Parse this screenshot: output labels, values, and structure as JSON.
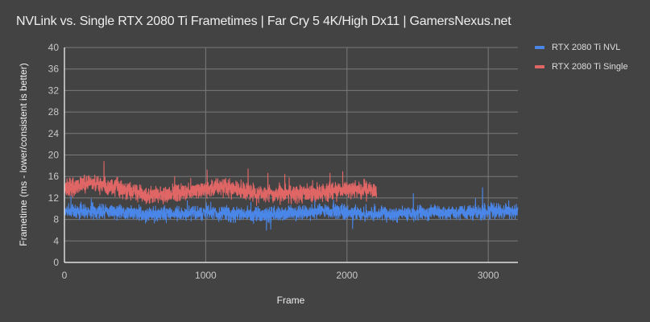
{
  "title": "NVLink vs. Single RTX 2080 Ti Frametimes | Far Cry 5 4K/High Dx11 | GamersNexus.net",
  "legend": {
    "items": [
      {
        "label": "RTX 2080 Ti NVL",
        "color": "#4a86e8"
      },
      {
        "label": "RTX 2080 Ti Single",
        "color": "#e06666"
      }
    ]
  },
  "axes": {
    "xlabel": "Frame",
    "ylabel": "Frametime (ms - lower/consistent is better)"
  },
  "colors": {
    "background": "#434343",
    "grid": "#7a7a7a",
    "axis": "#ffffff"
  },
  "chart_data": {
    "type": "line",
    "title": "NVLink vs. Single RTX 2080 Ti Frametimes | Far Cry 5 4K/High Dx11 | GamersNexus.net",
    "xlabel": "Frame",
    "ylabel": "Frametime (ms - lower/consistent is better)",
    "xlim": [
      0,
      3210
    ],
    "ylim": [
      0,
      40
    ],
    "xticks": [
      0,
      1000,
      2000,
      3000
    ],
    "yticks": [
      0,
      4,
      8,
      12,
      16,
      20,
      24,
      28,
      32,
      36,
      40
    ],
    "grid": true,
    "legend_position": "right",
    "series": [
      {
        "name": "RTX 2080 Ti NVL",
        "color": "#4a86e8",
        "frames": 3210,
        "mean_ms_segments": [
          [
            0,
            9.5
          ],
          [
            300,
            9.6
          ],
          [
            600,
            9.0
          ],
          [
            1000,
            9.2
          ],
          [
            1400,
            8.8
          ],
          [
            1900,
            9.6
          ],
          [
            2100,
            9.0
          ],
          [
            2600,
            9.2
          ],
          [
            3210,
            9.6
          ]
        ],
        "noise_ms": 0.9,
        "spikes": [
          [
            190,
            11.8
          ],
          [
            870,
            11.5
          ],
          [
            1320,
            11.2
          ],
          [
            1430,
            6.0
          ],
          [
            1460,
            6.2
          ],
          [
            1905,
            11.6
          ],
          [
            2040,
            6.3
          ],
          [
            2470,
            12.8
          ],
          [
            2910,
            11.9
          ],
          [
            2960,
            13.9
          ],
          [
            3020,
            11.2
          ]
        ],
        "seed": 7
      },
      {
        "name": "RTX 2080 Ti Single",
        "color": "#e06666",
        "frames": 2210,
        "mean_ms_segments": [
          [
            0,
            13.5
          ],
          [
            150,
            14.8
          ],
          [
            400,
            13.8
          ],
          [
            600,
            12.4
          ],
          [
            800,
            13.0
          ],
          [
            1100,
            14.0
          ],
          [
            1400,
            12.8
          ],
          [
            1800,
            12.9
          ],
          [
            2000,
            13.6
          ],
          [
            2210,
            13.4
          ]
        ],
        "noise_ms": 1.1,
        "spikes": [
          [
            280,
            18.8
          ],
          [
            140,
            16.2
          ],
          [
            780,
            16.0
          ],
          [
            1010,
            17.2
          ],
          [
            1300,
            17.4
          ],
          [
            1440,
            16.6
          ],
          [
            1560,
            16.4
          ],
          [
            1880,
            16.6
          ],
          [
            1970,
            16.9
          ],
          [
            470,
            11.6
          ],
          [
            1360,
            10.6
          ]
        ],
        "seed": 13
      }
    ]
  }
}
